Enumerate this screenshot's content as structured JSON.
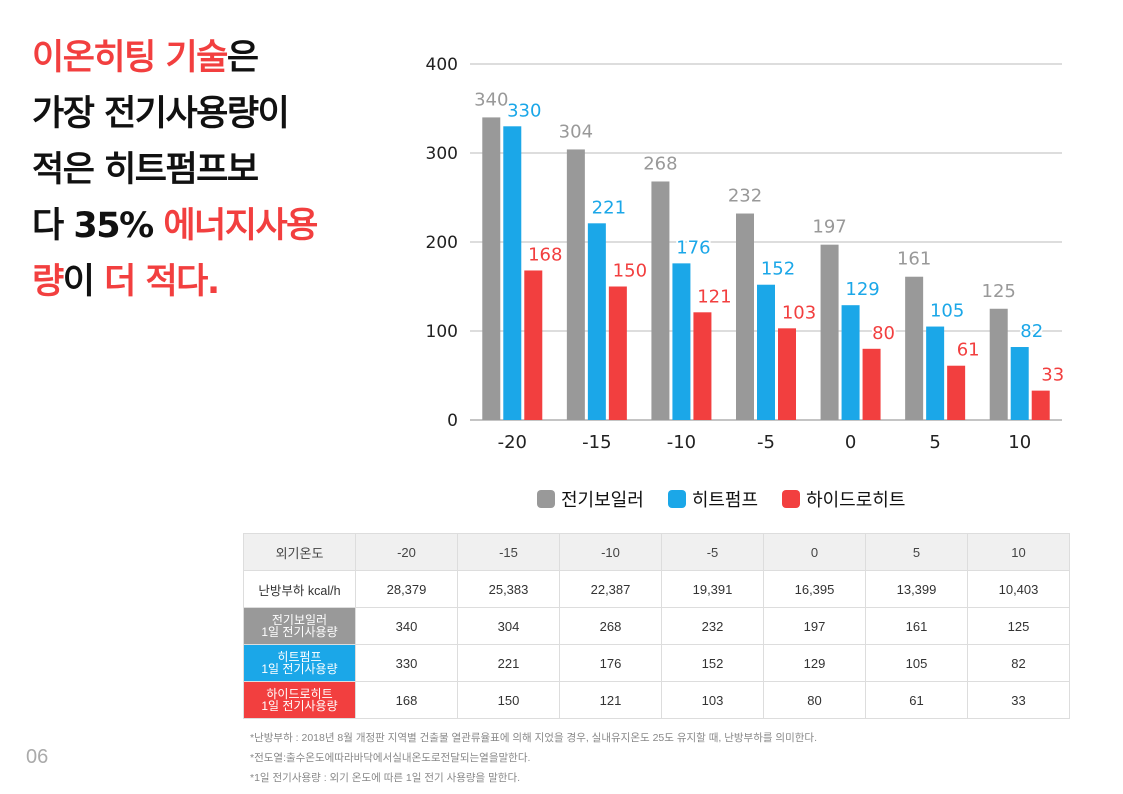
{
  "headline": {
    "line1_red": "이온히팅 기술",
    "line1_black": "은",
    "line2": "가장 전기사용량이",
    "line3": "적은 히트펌프보",
    "line4_black": "다 35% ",
    "line4_red": "에너지사용",
    "line5_red1": "량",
    "line5_black": "이 ",
    "line5_red2": "더 적다."
  },
  "chart_data": {
    "type": "bar",
    "categories": [
      "-20",
      "-15",
      "-10",
      "-5",
      "0",
      "5",
      "10"
    ],
    "series": [
      {
        "name": "전기보일러",
        "color": "#999999",
        "label_color": "#999999",
        "values": [
          340,
          304,
          268,
          232,
          197,
          161,
          125
        ]
      },
      {
        "name": "히트펌프",
        "color": "#1ba7e8",
        "label_color": "#1ba7e8",
        "values": [
          330,
          221,
          176,
          152,
          129,
          105,
          82
        ]
      },
      {
        "name": "하이드로히트",
        "color": "#f23f3f",
        "label_color": "#f23f3f",
        "values": [
          168,
          150,
          121,
          103,
          80,
          61,
          33
        ]
      }
    ],
    "ylim": [
      0,
      400
    ],
    "yticks": [
      0,
      100,
      200,
      300,
      400
    ],
    "grid": true,
    "legend": "bottom"
  },
  "table": {
    "header_label": "외기온도",
    "temps": [
      "-20",
      "-15",
      "-10",
      "-5",
      "0",
      "5",
      "10"
    ],
    "load_label": "난방부하 kcal/h",
    "loads": [
      "28,379",
      "25,383",
      "22,387",
      "19,391",
      "16,395",
      "13,399",
      "10,403"
    ],
    "rows": [
      {
        "name_line1": "전기보일러",
        "name_line2": "1일 전기사용량",
        "values": [
          "340",
          "304",
          "268",
          "232",
          "197",
          "161",
          "125"
        ]
      },
      {
        "name_line1": "히트펌프",
        "name_line2": "1일 전기사용량",
        "values": [
          "330",
          "221",
          "176",
          "152",
          "129",
          "105",
          "82"
        ]
      },
      {
        "name_line1": "하이드로히트",
        "name_line2": "1일 전기사용량",
        "values": [
          "168",
          "150",
          "121",
          "103",
          "80",
          "61",
          "33"
        ]
      }
    ]
  },
  "notes": [
    "*난방부하 : 2018년 8월 개정판 지역별 건출물 열관류율표에 의해 지었을 경우, 실내유지온도 25도 유지할 때, 난방부하를 의미한다.",
    "*전도열:출수온도에따라바닥에서실내온도로전달되는열을말한다.",
    "*1일 전기사용량 : 외기 온도에 따른 1일 전기 사용량을 말한다."
  ],
  "page_number": "06"
}
